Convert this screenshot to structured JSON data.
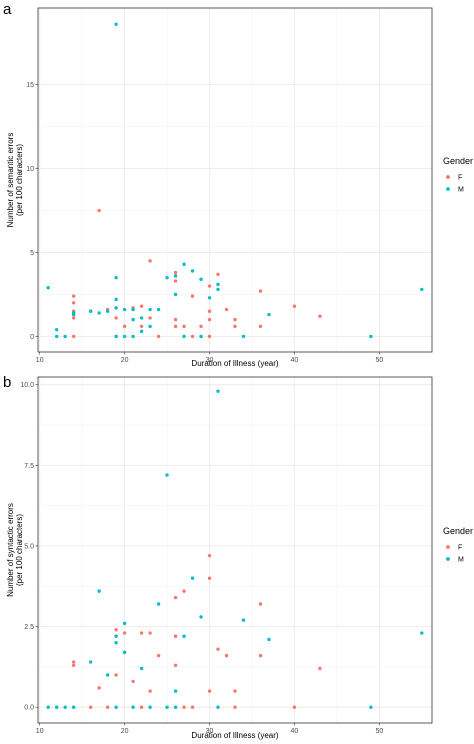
{
  "colors": {
    "F": "#F8766D",
    "M": "#00BFC4",
    "grid": "#ebebeb",
    "border": "#333333"
  },
  "chart_data": [
    {
      "panel": "a",
      "type": "scatter",
      "xlabel": "Duration of Illness (year)",
      "ylabel": [
        "Number of semantic errors",
        "(per 100 characters)"
      ],
      "xlim": [
        9.8,
        56.2
      ],
      "ylim": [
        -0.93,
        19.57
      ],
      "xticks": [
        10,
        20,
        30,
        40,
        50
      ],
      "yticks": [
        0,
        5,
        10,
        15
      ],
      "ytick_labels": [
        "0",
        "5",
        "10",
        "15"
      ],
      "legend": {
        "title": "Gender",
        "placement": "right",
        "entries": [
          "F",
          "M"
        ]
      },
      "series": [
        {
          "name": "F",
          "points": [
            [
              14,
              0
            ],
            [
              14,
              1.1
            ],
            [
              14,
              1.5
            ],
            [
              14,
              2.0
            ],
            [
              14,
              2.4
            ],
            [
              16,
              1.5
            ],
            [
              17,
              7.5
            ],
            [
              18,
              1.6
            ],
            [
              19,
              0
            ],
            [
              19,
              1.1
            ],
            [
              20,
              0.6
            ],
            [
              21,
              1.7
            ],
            [
              22,
              1.8
            ],
            [
              22,
              0.6
            ],
            [
              23,
              4.5
            ],
            [
              23,
              1.1
            ],
            [
              24,
              0
            ],
            [
              26,
              3.8
            ],
            [
              26,
              3.3
            ],
            [
              26,
              0.6
            ],
            [
              26,
              1.0
            ],
            [
              27,
              0.6
            ],
            [
              28,
              2.4
            ],
            [
              28,
              0
            ],
            [
              29,
              0.6
            ],
            [
              30,
              0
            ],
            [
              30,
              1.0
            ],
            [
              30,
              1.5
            ],
            [
              30,
              3.0
            ],
            [
              31,
              3.7
            ],
            [
              32,
              1.6
            ],
            [
              33,
              0.6
            ],
            [
              33,
              1.0
            ],
            [
              36,
              0.6
            ],
            [
              36,
              2.7
            ],
            [
              40,
              1.8
            ],
            [
              43,
              1.2
            ]
          ]
        },
        {
          "name": "M",
          "points": [
            [
              11,
              2.9
            ],
            [
              12,
              0
            ],
            [
              12,
              0.4
            ],
            [
              13,
              0
            ],
            [
              14,
              1.3
            ],
            [
              14,
              1.4
            ],
            [
              16,
              1.5
            ],
            [
              17,
              1.4
            ],
            [
              18,
              1.5
            ],
            [
              19,
              0
            ],
            [
              19,
              1.7
            ],
            [
              19,
              2.2
            ],
            [
              19,
              3.5
            ],
            [
              19,
              18.6
            ],
            [
              20,
              0
            ],
            [
              20,
              1.6
            ],
            [
              21,
              0
            ],
            [
              21,
              1.0
            ],
            [
              21,
              1.6
            ],
            [
              22,
              0.3
            ],
            [
              22,
              1.1
            ],
            [
              23,
              0.6
            ],
            [
              23,
              1.6
            ],
            [
              24,
              1.6
            ],
            [
              25,
              3.5
            ],
            [
              26,
              2.5
            ],
            [
              26,
              3.6
            ],
            [
              27,
              4.3
            ],
            [
              27,
              0
            ],
            [
              28,
              3.9
            ],
            [
              29,
              0
            ],
            [
              29,
              3.4
            ],
            [
              30,
              2.3
            ],
            [
              31,
              2.8
            ],
            [
              31,
              3.1
            ],
            [
              34,
              0
            ],
            [
              37,
              1.3
            ],
            [
              49,
              0
            ],
            [
              55,
              2.8
            ]
          ]
        }
      ]
    },
    {
      "panel": "b",
      "type": "scatter",
      "xlabel": "Duration of Illness (year)",
      "ylabel": [
        "Number of syntactic errors",
        "(per 100 characters)"
      ],
      "xlim": [
        9.8,
        56.2
      ],
      "ylim": [
        -0.49,
        10.24
      ],
      "xticks": [
        10,
        20,
        30,
        40,
        50
      ],
      "yticks": [
        0,
        2.5,
        5,
        7.5,
        10
      ],
      "ytick_labels": [
        "0.0",
        "2.5",
        "5.0",
        "7.5",
        "10.0"
      ],
      "legend": {
        "title": "Gender",
        "placement": "right",
        "entries": [
          "F",
          "M"
        ]
      },
      "series": [
        {
          "name": "F",
          "points": [
            [
              14,
              1.4
            ],
            [
              14,
              1.3
            ],
            [
              16,
              0
            ],
            [
              17,
              0.6
            ],
            [
              18,
              0
            ],
            [
              19,
              1.0
            ],
            [
              19,
              2.4
            ],
            [
              20,
              2.3
            ],
            [
              21,
              0.8
            ],
            [
              22,
              2.3
            ],
            [
              22,
              0
            ],
            [
              23,
              2.3
            ],
            [
              23,
              0.5
            ],
            [
              24,
              1.6
            ],
            [
              26,
              3.4
            ],
            [
              26,
              1.3
            ],
            [
              26,
              2.2
            ],
            [
              27,
              3.6
            ],
            [
              27,
              0
            ],
            [
              28,
              0
            ],
            [
              30,
              4.7
            ],
            [
              30,
              4.0
            ],
            [
              30,
              0.5
            ],
            [
              31,
              1.8
            ],
            [
              32,
              1.6
            ],
            [
              33,
              0.5
            ],
            [
              33,
              0
            ],
            [
              36,
              1.6
            ],
            [
              36,
              3.2
            ],
            [
              40,
              0
            ],
            [
              43,
              1.2
            ]
          ]
        },
        {
          "name": "M",
          "points": [
            [
              11,
              0
            ],
            [
              12,
              0
            ],
            [
              13,
              0
            ],
            [
              14,
              0
            ],
            [
              16,
              1.4
            ],
            [
              17,
              3.6
            ],
            [
              18,
              1.0
            ],
            [
              19,
              2.0
            ],
            [
              19,
              2.2
            ],
            [
              19,
              0
            ],
            [
              20,
              2.6
            ],
            [
              20,
              1.7
            ],
            [
              21,
              0
            ],
            [
              22,
              1.2
            ],
            [
              23,
              0
            ],
            [
              24,
              3.2
            ],
            [
              25,
              7.2
            ],
            [
              25,
              0
            ],
            [
              26,
              0.5
            ],
            [
              26,
              0
            ],
            [
              27,
              2.2
            ],
            [
              28,
              4.0
            ],
            [
              29,
              2.8
            ],
            [
              31,
              9.8
            ],
            [
              31,
              0
            ],
            [
              34,
              2.7
            ],
            [
              37,
              2.1
            ],
            [
              49,
              0
            ],
            [
              55,
              2.3
            ]
          ]
        }
      ]
    }
  ]
}
